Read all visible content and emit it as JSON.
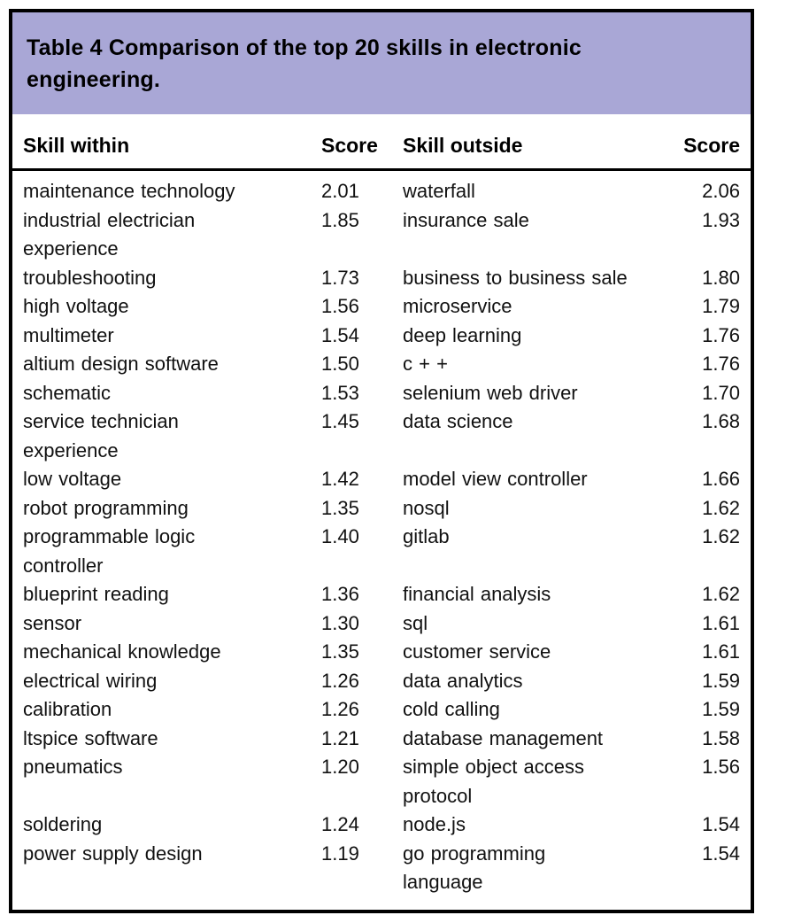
{
  "table": {
    "title": "Table 4 Comparison of the top 20 skills in electronic engineering.",
    "columns": [
      "Skill within",
      "Score",
      "Skill outside",
      "Score"
    ],
    "rows": [
      {
        "skill_within": "maintenance technology",
        "score_within": "2.01",
        "skill_outside": "waterfall",
        "score_outside": "2.06"
      },
      {
        "skill_within": "industrial electrician\nexperience",
        "score_within": "1.85",
        "skill_outside": "insurance sale",
        "score_outside": "1.93"
      },
      {
        "skill_within": "troubleshooting",
        "score_within": "1.73",
        "skill_outside": "business to business sale",
        "score_outside": "1.80"
      },
      {
        "skill_within": "high voltage",
        "score_within": "1.56",
        "skill_outside": "microservice",
        "score_outside": "1.79"
      },
      {
        "skill_within": "multimeter",
        "score_within": "1.54",
        "skill_outside": "deep learning",
        "score_outside": "1.76"
      },
      {
        "skill_within": "altium design software",
        "score_within": "1.50",
        "skill_outside": "c + +",
        "score_outside": "1.76"
      },
      {
        "skill_within": "schematic",
        "score_within": "1.53",
        "skill_outside": "selenium web driver",
        "score_outside": "1.70"
      },
      {
        "skill_within": "service technician\nexperience",
        "score_within": "1.45",
        "skill_outside": "data science",
        "score_outside": "1.68"
      },
      {
        "skill_within": "low voltage",
        "score_within": "1.42",
        "skill_outside": "model view controller",
        "score_outside": "1.66"
      },
      {
        "skill_within": "robot programming",
        "score_within": "1.35",
        "skill_outside": "nosql",
        "score_outside": "1.62"
      },
      {
        "skill_within": "programmable logic\ncontroller",
        "score_within": "1.40",
        "skill_outside": "gitlab",
        "score_outside": "1.62"
      },
      {
        "skill_within": "blueprint reading",
        "score_within": "1.36",
        "skill_outside": "financial analysis",
        "score_outside": "1.62"
      },
      {
        "skill_within": "sensor",
        "score_within": "1.30",
        "skill_outside": "sql",
        "score_outside": "1.61"
      },
      {
        "skill_within": "mechanical knowledge",
        "score_within": "1.35",
        "skill_outside": "customer service",
        "score_outside": "1.61"
      },
      {
        "skill_within": "electrical wiring",
        "score_within": "1.26",
        "skill_outside": "data analytics",
        "score_outside": "1.59"
      },
      {
        "skill_within": "calibration",
        "score_within": "1.26",
        "skill_outside": "cold calling",
        "score_outside": "1.59"
      },
      {
        "skill_within": "ltspice software",
        "score_within": "1.21",
        "skill_outside": "database management",
        "score_outside": "1.58"
      },
      {
        "skill_within": "pneumatics",
        "score_within": "1.20",
        "skill_outside": "simple object access\nprotocol",
        "score_outside": "1.56"
      },
      {
        "skill_within": "soldering",
        "score_within": "1.24",
        "skill_outside": "node.js",
        "score_outside": "1.54"
      },
      {
        "skill_within": "power supply design",
        "score_within": "1.19",
        "skill_outside": "go programming\nlanguage",
        "score_outside": "1.54"
      }
    ],
    "colors": {
      "title_band_bg": "#a9a7d6",
      "border": "#000000",
      "text": "#111111"
    }
  }
}
